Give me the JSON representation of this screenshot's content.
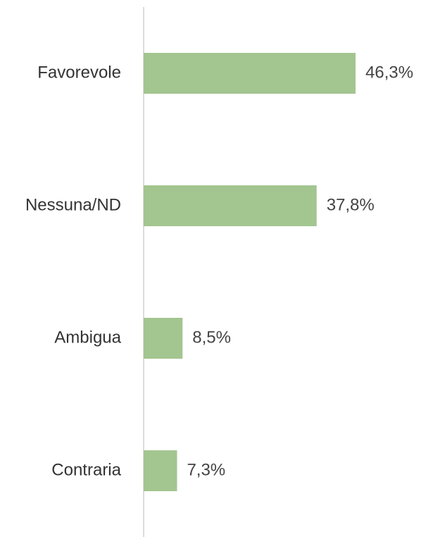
{
  "chart_data": {
    "type": "hbar",
    "categories": [
      "Favorevole",
      "Nessuna/ND",
      "Ambigua",
      "Contraria"
    ],
    "values": [
      46.3,
      37.8,
      8.5,
      7.3
    ],
    "value_labels": [
      "46,3%",
      "37,8%",
      "8,5%",
      "7,3%"
    ],
    "color": "#a3c58f",
    "xlim": [
      0,
      50
    ]
  }
}
